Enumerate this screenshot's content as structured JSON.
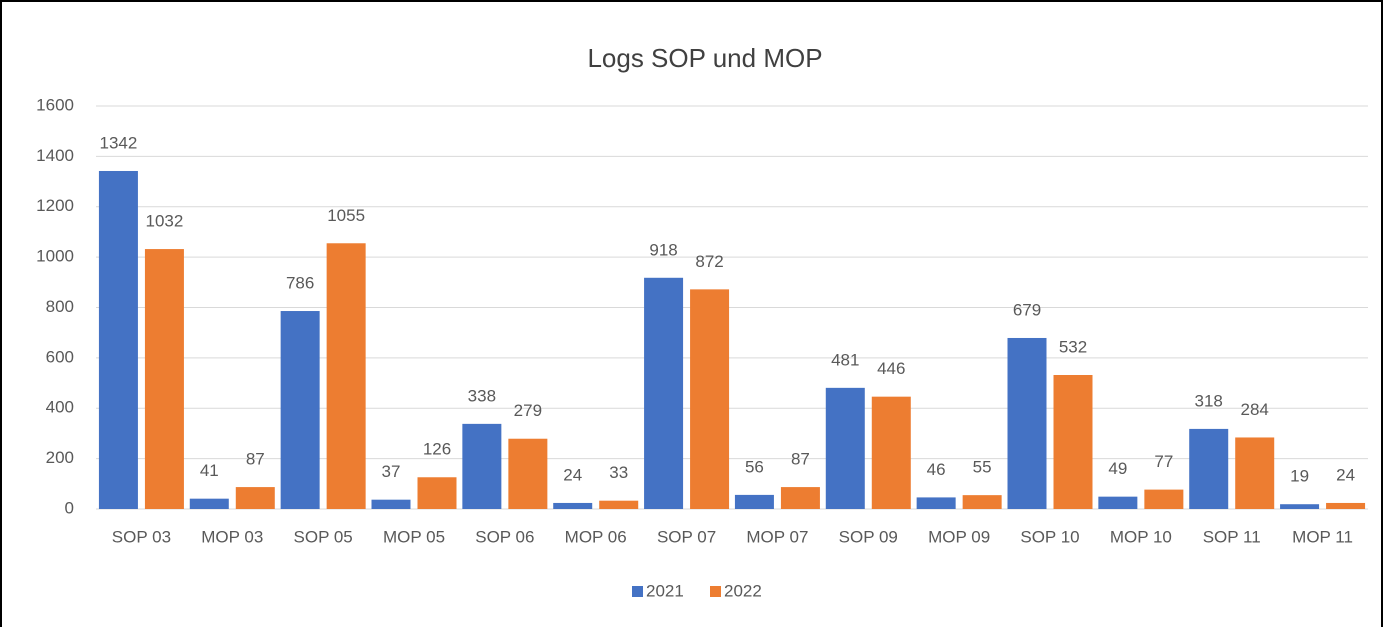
{
  "chart_data": {
    "type": "bar",
    "title": "Logs SOP und MOP",
    "categories": [
      "SOP 03",
      "MOP 03",
      "SOP 05",
      "MOP 05",
      "SOP 06",
      "MOP 06",
      "SOP 07",
      "MOP 07",
      "SOP 09",
      "MOP 09",
      "SOP 10",
      "MOP 10",
      "SOP 11",
      "MOP 11"
    ],
    "series": [
      {
        "name": "2021",
        "color": "#4472c4",
        "values": [
          1342,
          41,
          786,
          37,
          338,
          24,
          918,
          56,
          481,
          46,
          679,
          49,
          318,
          19
        ]
      },
      {
        "name": "2022",
        "color": "#ed7d31",
        "values": [
          1032,
          87,
          1055,
          126,
          279,
          33,
          872,
          87,
          446,
          55,
          532,
          77,
          284,
          24
        ]
      }
    ],
    "ylim": [
      0,
      1600
    ],
    "yticks": [
      0,
      200,
      400,
      600,
      800,
      1000,
      1200,
      1400,
      1600
    ],
    "grid": true,
    "legend": "bottom"
  }
}
